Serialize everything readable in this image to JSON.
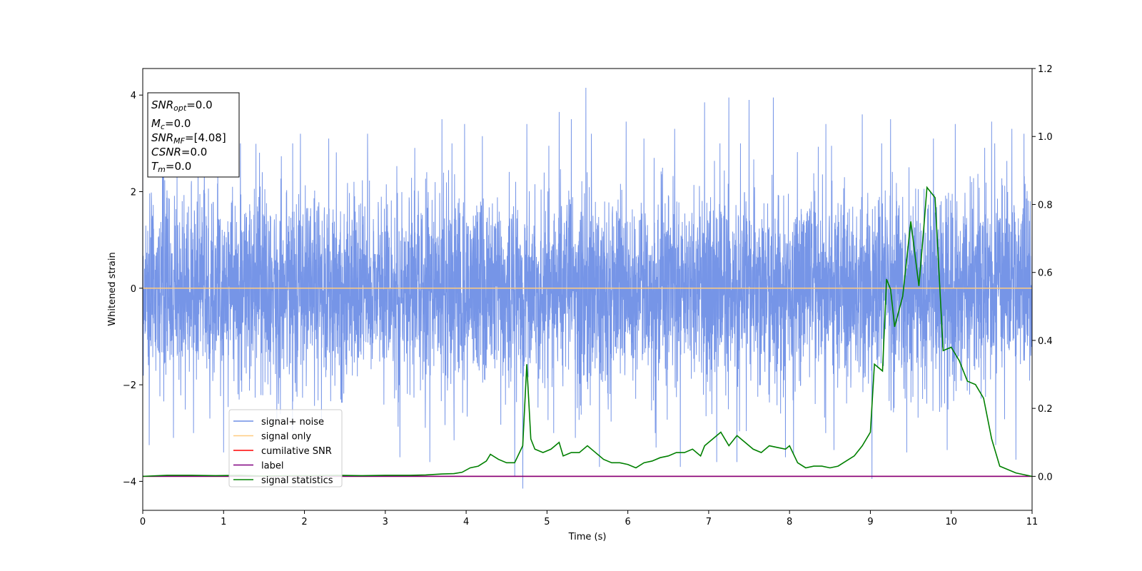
{
  "chart_data": {
    "type": "line",
    "title": "",
    "xlabel": "Time (s)",
    "ylabel": "Whitened strain",
    "y2label": "",
    "xlim": [
      0,
      11
    ],
    "ylim": [
      -4.6,
      4.55
    ],
    "y2lim": [
      -0.1,
      1.2
    ],
    "xticks": [
      0,
      1,
      2,
      3,
      4,
      5,
      6,
      7,
      8,
      9,
      10,
      11
    ],
    "yticks": [
      -4,
      -2,
      0,
      2,
      4
    ],
    "y2ticks": [
      0.0,
      0.2,
      0.4,
      0.6,
      0.8,
      1.0,
      1.2
    ],
    "xtick_labels": [
      "0",
      "1",
      "2",
      "3",
      "4",
      "5",
      "6",
      "7",
      "8",
      "9",
      "10",
      "11"
    ],
    "ytick_labels": [
      "−4",
      "−2",
      "0",
      "2",
      "4"
    ],
    "y2tick_labels": [
      "0.0",
      "0.2",
      "0.4",
      "0.6",
      "0.8",
      "1.0",
      "1.2"
    ],
    "grid": false,
    "legend_position": "lower-left",
    "legend": [
      {
        "label": "signal+ noise",
        "color": "#6f8fe6"
      },
      {
        "label": "signal only",
        "color": "#ffcc80"
      },
      {
        "label": "cumilative SNR",
        "color": "#ff0000"
      },
      {
        "label": "label",
        "color": "#800080"
      },
      {
        "label": "signal statistics",
        "color": "#008000"
      }
    ],
    "info_box": {
      "snr_opt": {
        "symbol": "SNR",
        "sub": "opt",
        "rest": "=0.0"
      },
      "mc": {
        "symbol": "M",
        "sub": "c",
        "rest": "=0.0"
      },
      "snr_mf": {
        "symbol": "SNR",
        "sub": "MF",
        "rest": "=[4.08]"
      },
      "csnr": {
        "symbol": "CSNR",
        "sub": "",
        "rest": "=0.0"
      },
      "tm": {
        "symbol": "T",
        "sub": "m",
        "rest": "=0.0"
      }
    },
    "series": [
      {
        "name": "signal+ noise",
        "axis": "left",
        "color": "#6f8fe6",
        "kind": "noise",
        "sigma": 1.0,
        "spikes": [
          [
            0.0,
            3.2
          ],
          [
            0.08,
            -3.25
          ],
          [
            0.25,
            3.0
          ],
          [
            0.38,
            -3.1
          ],
          [
            1.0,
            -3.4
          ],
          [
            1.95,
            3.2
          ],
          [
            2.3,
            3.1
          ],
          [
            2.78,
            3.2
          ],
          [
            3.18,
            -3.5
          ],
          [
            3.55,
            -3.6
          ],
          [
            3.7,
            3.5
          ],
          [
            3.85,
            -3.15
          ],
          [
            3.98,
            3.4
          ],
          [
            4.2,
            3.15
          ],
          [
            4.6,
            -3.9
          ],
          [
            4.7,
            -4.15
          ],
          [
            4.75,
            3.4
          ],
          [
            5.15,
            3.65
          ],
          [
            5.3,
            3.5
          ],
          [
            5.35,
            -3.1
          ],
          [
            5.48,
            4.15
          ],
          [
            5.55,
            3.2
          ],
          [
            5.65,
            -3.7
          ],
          [
            5.98,
            3.45
          ],
          [
            6.2,
            3.1
          ],
          [
            6.35,
            -3.3
          ],
          [
            6.58,
            3.3
          ],
          [
            6.65,
            -3.7
          ],
          [
            6.95,
            3.85
          ],
          [
            7.1,
            -3.6
          ],
          [
            7.25,
            3.95
          ],
          [
            7.35,
            -3.6
          ],
          [
            7.5,
            3.9
          ],
          [
            7.8,
            3.95
          ],
          [
            7.95,
            -3.5
          ],
          [
            8.05,
            -3.45
          ],
          [
            8.45,
            3.4
          ],
          [
            8.55,
            -3.35
          ],
          [
            8.9,
            3.6
          ],
          [
            9.02,
            -3.95
          ],
          [
            9.25,
            3.5
          ],
          [
            9.45,
            -3.4
          ],
          [
            9.78,
            3.1
          ],
          [
            9.95,
            -3.35
          ],
          [
            10.05,
            3.4
          ],
          [
            10.5,
            3.45
          ],
          [
            10.55,
            -3.25
          ],
          [
            10.75,
            3.3
          ],
          [
            10.8,
            -3.55
          ],
          [
            10.9,
            3.2
          ]
        ]
      },
      {
        "name": "signal only",
        "axis": "left",
        "color": "#ffcc80",
        "x": [
          0,
          11
        ],
        "y": [
          0,
          0
        ]
      },
      {
        "name": "cumilative SNR",
        "axis": "right",
        "color": "#ff0000",
        "x": [
          0,
          11
        ],
        "y": [
          0,
          0
        ]
      },
      {
        "name": "label",
        "axis": "right",
        "color": "#800080",
        "x": [
          0,
          11
        ],
        "y": [
          0,
          0
        ]
      },
      {
        "name": "signal statistics",
        "axis": "right",
        "color": "#008000",
        "x": [
          0,
          0.3,
          0.6,
          0.9,
          1.2,
          1.5,
          1.8,
          2.1,
          2.4,
          2.7,
          3.0,
          3.3,
          3.5,
          3.7,
          3.85,
          3.95,
          4.05,
          4.15,
          4.25,
          4.3,
          4.4,
          4.5,
          4.6,
          4.7,
          4.75,
          4.8,
          4.85,
          4.95,
          5.05,
          5.15,
          5.2,
          5.3,
          5.4,
          5.5,
          5.6,
          5.7,
          5.8,
          5.9,
          6.0,
          6.1,
          6.2,
          6.3,
          6.4,
          6.5,
          6.6,
          6.7,
          6.8,
          6.9,
          6.95,
          7.05,
          7.15,
          7.25,
          7.35,
          7.45,
          7.55,
          7.65,
          7.75,
          7.85,
          7.95,
          8.0,
          8.1,
          8.2,
          8.3,
          8.4,
          8.5,
          8.6,
          8.7,
          8.8,
          8.9,
          9.0,
          9.05,
          9.15,
          9.2,
          9.25,
          9.3,
          9.4,
          9.5,
          9.6,
          9.65,
          9.7,
          9.8,
          9.9,
          10.0,
          10.1,
          10.2,
          10.3,
          10.4,
          10.5,
          10.6,
          10.7,
          10.8,
          11.0
        ],
        "y": [
          0.0,
          0.003,
          0.003,
          0.002,
          0.003,
          0.001,
          0.002,
          0.002,
          0.003,
          0.002,
          0.003,
          0.003,
          0.004,
          0.007,
          0.008,
          0.012,
          0.025,
          0.03,
          0.045,
          0.065,
          0.05,
          0.04,
          0.04,
          0.09,
          0.33,
          0.11,
          0.08,
          0.07,
          0.08,
          0.1,
          0.06,
          0.07,
          0.07,
          0.09,
          0.07,
          0.05,
          0.04,
          0.04,
          0.035,
          0.025,
          0.04,
          0.045,
          0.055,
          0.06,
          0.07,
          0.07,
          0.08,
          0.06,
          0.09,
          0.11,
          0.13,
          0.09,
          0.12,
          0.1,
          0.08,
          0.07,
          0.09,
          0.085,
          0.08,
          0.09,
          0.04,
          0.025,
          0.03,
          0.03,
          0.025,
          0.03,
          0.045,
          0.06,
          0.09,
          0.13,
          0.33,
          0.31,
          0.58,
          0.55,
          0.44,
          0.53,
          0.75,
          0.56,
          0.7,
          0.85,
          0.82,
          0.37,
          0.38,
          0.34,
          0.28,
          0.27,
          0.23,
          0.11,
          0.03,
          0.02,
          0.01,
          0.0
        ]
      }
    ]
  }
}
